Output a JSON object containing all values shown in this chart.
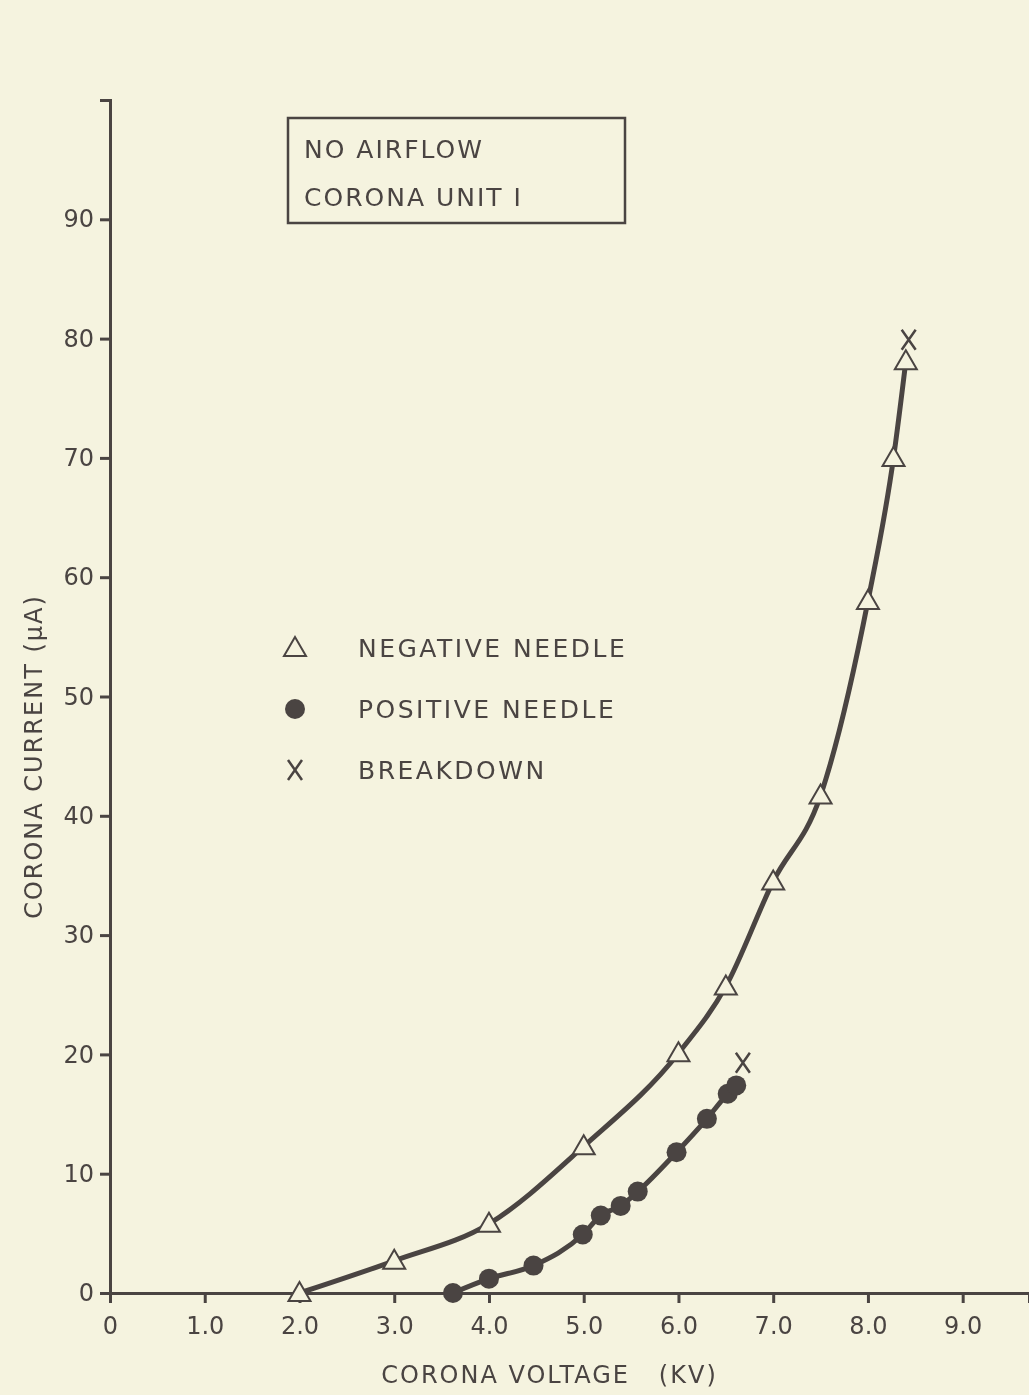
{
  "chart_data": {
    "type": "line",
    "xlabel": "CORONA VOLTAGE   (KV)",
    "ylabel": "CORONA CURRENT (μA)",
    "annotations": [
      "NO AIRFLOW",
      "CORONA UNIT I"
    ],
    "xlim": [
      0,
      9.7
    ],
    "ylim": [
      0,
      100
    ],
    "xticks": [
      0,
      {
        "value": 1,
        "label": "1.0"
      },
      {
        "value": 2,
        "label": "2.0"
      },
      {
        "value": 3,
        "label": "3.0"
      },
      {
        "value": 4,
        "label": "4.0"
      },
      {
        "value": 5,
        "label": "5.0"
      },
      {
        "value": 6,
        "label": "6.0"
      },
      {
        "value": 7,
        "label": "7.0"
      },
      {
        "value": 8,
        "label": "8.0"
      },
      {
        "value": 9,
        "label": "9.0"
      }
    ],
    "yticks": [
      0,
      10,
      20,
      30,
      40,
      50,
      60,
      70,
      80,
      90
    ],
    "grid": false,
    "legend": "left",
    "series": [
      {
        "name": "NEGATIVE NEEDLE",
        "marker": "triangle",
        "line_style": "solid",
        "color": "#4a4442",
        "x": [
          2.0,
          3.0,
          4.0,
          5.0,
          6.0,
          6.5,
          7.0,
          7.5,
          8.0,
          8.27,
          8.4
        ],
        "values": [
          0,
          2.7,
          5.8,
          12.3,
          20.1,
          25.7,
          34.5,
          41.7,
          58.0,
          70.0,
          78.1
        ]
      },
      {
        "name": "POSITIVE NEEDLE",
        "marker": "circle",
        "line_style": "solid",
        "color": "#4a4442",
        "x": [
          3.62,
          4.0,
          4.47,
          4.99,
          5.18,
          5.39,
          5.57,
          5.98,
          6.3,
          6.52,
          6.61
        ],
        "values": [
          0,
          1.2,
          2.3,
          4.9,
          6.5,
          7.3,
          8.5,
          11.8,
          14.6,
          16.7,
          17.4
        ]
      },
      {
        "name": "BREAKDOWN",
        "type": "scatter",
        "marker": "cross",
        "color": "#4a4442",
        "x": [
          8.43,
          6.68
        ],
        "values": [
          79.9,
          19.3
        ]
      }
    ]
  }
}
